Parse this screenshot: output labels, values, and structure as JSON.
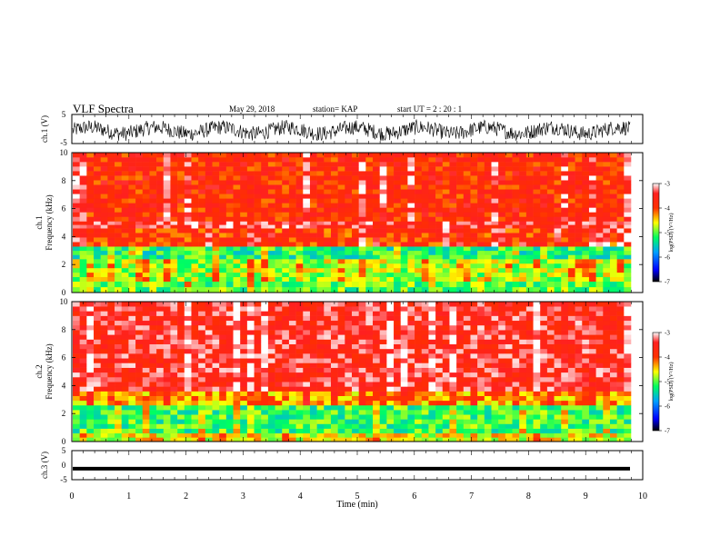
{
  "header": {
    "title": "VLF Spectra",
    "date": "May 29, 2018",
    "station": "station= KAP",
    "start_ut": "start  UT  =   2  : 20 : 1"
  },
  "chart_data": [
    {
      "type": "line",
      "panel": "ch1-waveform",
      "ylabel": "ch.1 (V)",
      "ylim": [
        -5,
        5
      ],
      "yticks": [
        "5",
        "-5"
      ],
      "xlim": [
        0,
        10
      ],
      "description_visible": "dense noise trace centered slightly below 0, amplitude roughly -4 to 3"
    },
    {
      "type": "heatmap",
      "panel": "ch1-spectrogram",
      "ylabel": "ch.1",
      "ylabel2": "Frequency (kHz)",
      "ylim": [
        0,
        10
      ],
      "yticks": [
        "0",
        "2",
        "4",
        "6",
        "8",
        "10"
      ],
      "xlim": [
        0,
        9.8
      ],
      "bands": [
        {
          "from": 0,
          "to": 0.8,
          "level": -5.0
        },
        {
          "from": 0.8,
          "to": 2.4,
          "level": -4.8
        },
        {
          "from": 2.4,
          "to": 3.3,
          "level": -5.2
        },
        {
          "from": 3.3,
          "to": 4.6,
          "level": -3.9
        },
        {
          "from": 4.6,
          "to": 5.1,
          "level": -3.5
        },
        {
          "from": 5.1,
          "to": 10,
          "level": -3.8
        }
      ],
      "colorbar": {
        "label": "log(PSD) (V²/Hz)",
        "ticks": [
          "-3",
          "-4",
          "-5",
          "-6",
          "-7"
        ],
        "range": [
          -7,
          -3
        ]
      }
    },
    {
      "type": "heatmap",
      "panel": "ch2-spectrogram",
      "ylabel": "ch.2",
      "ylabel2": "Frequency (kHz)",
      "ylim": [
        0,
        10
      ],
      "yticks": [
        "0",
        "2",
        "4",
        "6",
        "8",
        "10"
      ],
      "xlim": [
        0,
        9.8
      ],
      "bands": [
        {
          "from": 0,
          "to": 0.6,
          "level": -4.6
        },
        {
          "from": 0.6,
          "to": 2.6,
          "level": -5.1
        },
        {
          "from": 2.6,
          "to": 3.6,
          "level": -4.3
        },
        {
          "from": 3.6,
          "to": 10,
          "level": -3.5
        }
      ],
      "colorbar": {
        "label": "log(PSD) (V²/Hz)",
        "ticks": [
          "-3",
          "-4",
          "-5",
          "-6",
          "-7"
        ],
        "range": [
          -7,
          -3
        ]
      }
    },
    {
      "type": "line",
      "panel": "ch3-waveform",
      "ylabel": "ch.3 (V)",
      "ylim": [
        -5,
        5
      ],
      "yticks": [
        "5",
        "0",
        "-5"
      ],
      "xlim": [
        0,
        10
      ],
      "value": -1.2
    }
  ],
  "xaxis": {
    "label": "Time  (min)",
    "ticks": [
      "0",
      "1",
      "2",
      "3",
      "4",
      "5",
      "6",
      "7",
      "8",
      "9",
      "10"
    ]
  },
  "colors": {
    "trace": "#000000",
    "frame": "#000000"
  }
}
